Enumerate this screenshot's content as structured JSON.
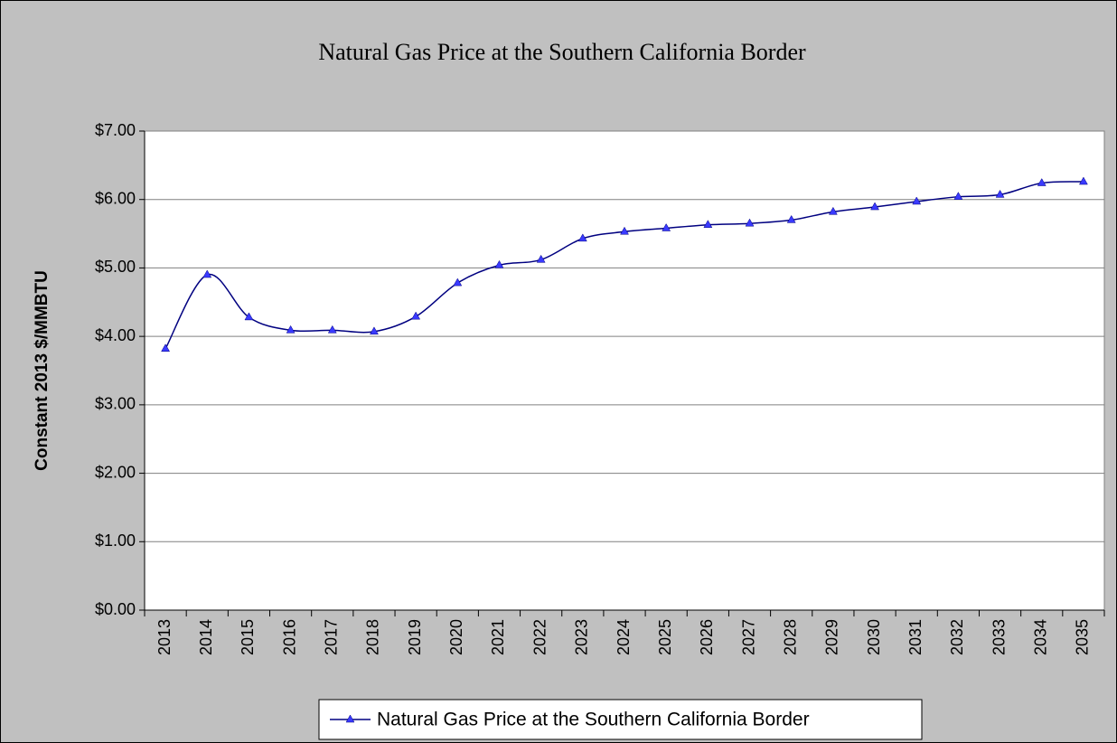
{
  "chart_data": {
    "type": "line",
    "title": "Natural Gas Price at the Southern California Border",
    "y_label": "Constant 2013 $/MMBTU",
    "categories": [
      "2013",
      "2014",
      "2015",
      "2016",
      "2017",
      "2018",
      "2019",
      "2020",
      "2021",
      "2022",
      "2023",
      "2024",
      "2025",
      "2026",
      "2027",
      "2028",
      "2029",
      "2030",
      "2031",
      "2032",
      "2033",
      "2034",
      "2035"
    ],
    "series": [
      {
        "name": "Natural Gas Price at the Southern California Border",
        "color": "#000080",
        "marker_color": "#3a3aff",
        "values": [
          3.82,
          4.9,
          4.28,
          4.09,
          4.09,
          4.07,
          4.29,
          4.78,
          5.04,
          5.12,
          5.43,
          5.53,
          5.58,
          5.63,
          5.65,
          5.7,
          5.82,
          5.89,
          5.97,
          6.04,
          6.07,
          6.24,
          6.26
        ]
      }
    ],
    "ylim": [
      0,
      7
    ],
    "yticks": [
      {
        "value": 0,
        "label": "$0.00"
      },
      {
        "value": 1,
        "label": "$1.00"
      },
      {
        "value": 2,
        "label": "$2.00"
      },
      {
        "value": 3,
        "label": "$3.00"
      },
      {
        "value": 4,
        "label": "$4.00"
      },
      {
        "value": 5,
        "label": "$5.00"
      },
      {
        "value": 6,
        "label": "$6.00"
      },
      {
        "value": 7,
        "label": "$7.00"
      }
    ],
    "grid": true,
    "legend": "bottom"
  }
}
